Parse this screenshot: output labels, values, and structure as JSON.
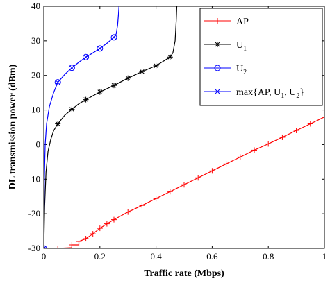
{
  "chart_data": {
    "type": "line",
    "xlabel": "Traffic rate (Mbps)",
    "ylabel": "DL transmission power (dBm)",
    "xlim": [
      0,
      1
    ],
    "ylim": [
      -30,
      40
    ],
    "xticks": [
      0,
      0.2,
      0.4,
      0.6,
      0.8,
      1
    ],
    "xtick_labels": [
      "0",
      "0.2",
      "0.4",
      "0.6",
      "0.8",
      "1"
    ],
    "yticks": [
      -30,
      -20,
      -10,
      0,
      10,
      20,
      30,
      40
    ],
    "ytick_labels": [
      "-30",
      "-20",
      "-10",
      "0",
      "10",
      "20",
      "30",
      "40"
    ],
    "grid": false,
    "legend_position": "top-right",
    "legend": [
      {
        "label": "AP",
        "sub": "",
        "tail": "",
        "color": "#ff0000",
        "marker": "plus"
      },
      {
        "label": "U",
        "sub": "1",
        "tail": "",
        "color": "#000000",
        "marker": "star"
      },
      {
        "label": "U",
        "sub": "2",
        "tail": "",
        "color": "#0000ff",
        "marker": "circle-x"
      },
      {
        "label": "max{AP, U",
        "sub": "1",
        "tail": ", U",
        "sub2": "2",
        "tail2": "}",
        "color": "#0000ff",
        "marker": "x"
      }
    ],
    "series": [
      {
        "color": "#ff0000",
        "marker": "plus",
        "x": [
          0,
          0.05,
          0.1,
          0.1,
          0.125,
          0.125,
          0.15,
          0.175,
          0.2,
          0.225,
          0.25,
          0.3,
          0.35,
          0.4,
          0.45,
          0.5,
          0.55,
          0.6,
          0.65,
          0.7,
          0.75,
          0.8,
          0.85,
          0.9,
          0.95,
          1.0
        ],
        "y": [
          -30,
          -30,
          -29.8,
          -29,
          -29,
          -28,
          -27.2,
          -25.8,
          -24.2,
          -22.9,
          -21.7,
          -19.5,
          -17.6,
          -15.6,
          -13.6,
          -11.6,
          -9.6,
          -7.6,
          -5.6,
          -3.6,
          -1.6,
          0.2,
          2.1,
          4.1,
          6.0,
          8.0
        ],
        "marker_x": [
          0,
          0.05,
          0.1,
          0.125,
          0.15,
          0.175,
          0.2,
          0.225,
          0.25,
          0.3,
          0.35,
          0.4,
          0.45,
          0.5,
          0.55,
          0.6,
          0.65,
          0.7,
          0.75,
          0.8,
          0.85,
          0.9,
          0.95,
          1.0
        ],
        "marker_y": [
          -30,
          -30,
          -29,
          -28,
          -27.2,
          -25.8,
          -24.2,
          -22.9,
          -21.7,
          -19.5,
          -17.6,
          -15.6,
          -13.6,
          -11.6,
          -9.6,
          -7.6,
          -5.6,
          -3.6,
          -1.6,
          0.2,
          2.1,
          4.1,
          6.0,
          8.0
        ]
      },
      {
        "color": "#000000",
        "marker": "star",
        "x": [
          0,
          0.003,
          0.008,
          0.015,
          0.025,
          0.035,
          0.05,
          0.075,
          0.1,
          0.125,
          0.15,
          0.2,
          0.25,
          0.3,
          0.35,
          0.4,
          0.45,
          0.46,
          0.468,
          0.472,
          0.474
        ],
        "y": [
          -30,
          -18,
          -8,
          -2,
          1.5,
          4,
          6,
          8.5,
          10.2,
          11.8,
          13,
          15.2,
          17.1,
          19.2,
          21.1,
          22.8,
          25.3,
          26.5,
          30,
          36,
          40
        ],
        "marker_x": [
          0,
          0.05,
          0.1,
          0.15,
          0.2,
          0.25,
          0.3,
          0.35,
          0.4,
          0.45
        ],
        "marker_y": [
          -30,
          6,
          10.2,
          13,
          15.2,
          17.1,
          19.2,
          21.1,
          22.8,
          25.3
        ]
      },
      {
        "color": "#0000ff",
        "marker": "circle-x",
        "x": [
          0,
          0.002,
          0.005,
          0.01,
          0.02,
          0.035,
          0.05,
          0.075,
          0.1,
          0.125,
          0.15,
          0.175,
          0.2,
          0.225,
          0.25,
          0.258,
          0.263,
          0.266,
          0.268
        ],
        "y": [
          -30,
          -10,
          0,
          6,
          11,
          15,
          18,
          20.3,
          22.2,
          23.8,
          25.3,
          26.5,
          27.8,
          29.3,
          31.0,
          32,
          34.5,
          37.5,
          40
        ],
        "marker_x": [
          0,
          0.05,
          0.1,
          0.15,
          0.2,
          0.25
        ],
        "marker_y": [
          -30,
          18,
          22.2,
          25.3,
          27.8,
          31.0
        ]
      }
    ]
  }
}
